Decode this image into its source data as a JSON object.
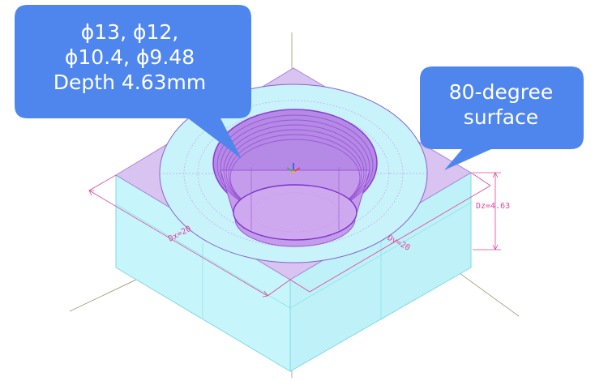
{
  "callouts": {
    "left": {
      "lines": [
        "ϕ13, ϕ12,",
        "ϕ10.4, ϕ9.48",
        "Depth 4.63mm"
      ],
      "fill": "#4f86ee"
    },
    "right": {
      "lines": [
        "80-degree",
        "surface"
      ],
      "fill": "#4f86ee"
    }
  },
  "dimensions": {
    "dx": "Dx=20",
    "dy": "Dy=20",
    "dz": "Dz=4.63"
  },
  "colors": {
    "block_side": "#c6f6fb",
    "block_top": "#d9c3f0",
    "pocket": "#b58ae6",
    "wire": "#9a55d6",
    "dimension": "#e2449a",
    "axis": "#9a9a72"
  }
}
